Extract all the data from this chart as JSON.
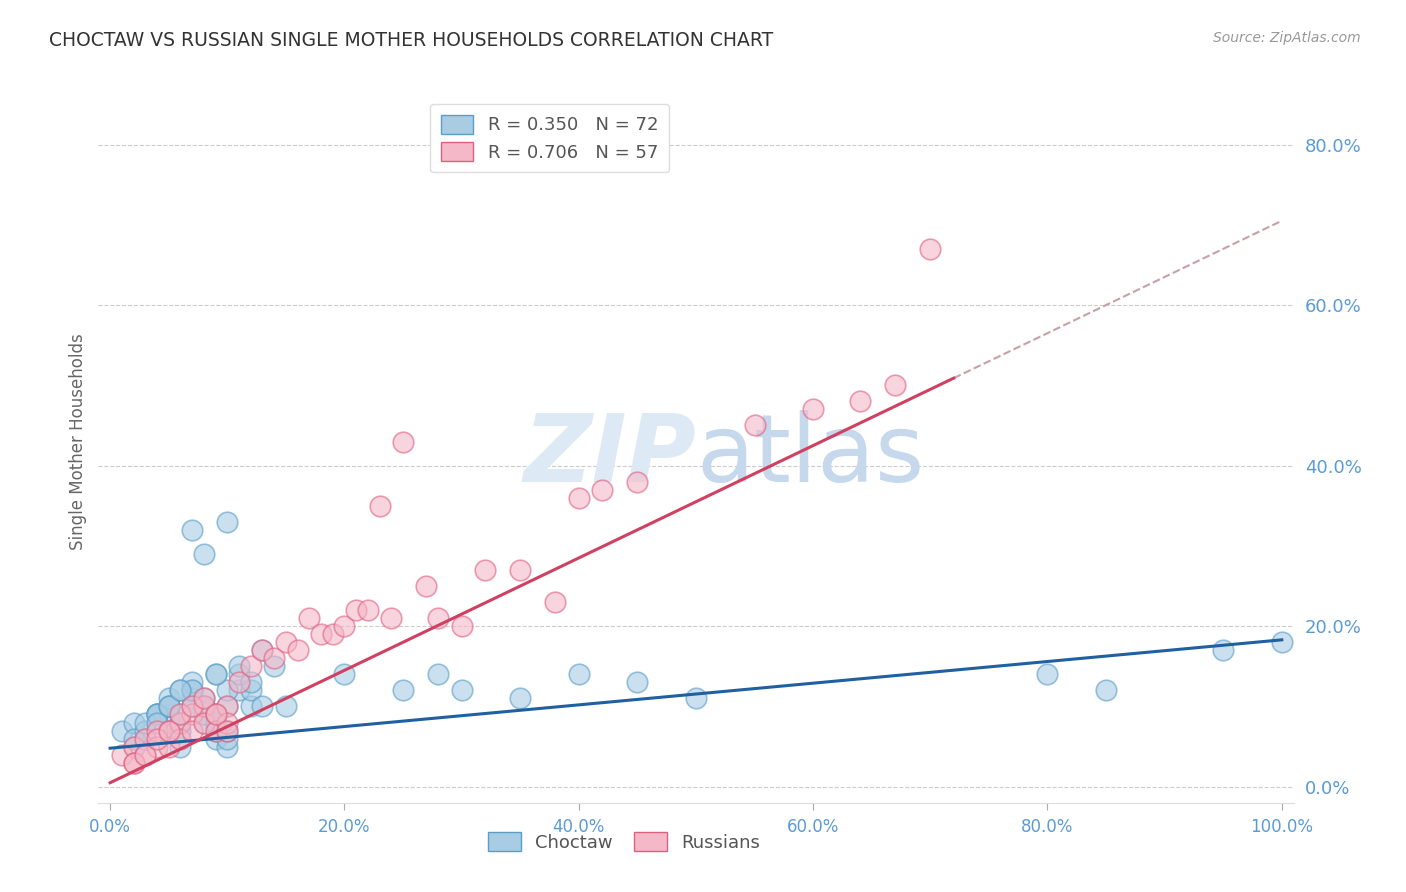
{
  "title": "CHOCTAW VS RUSSIAN SINGLE MOTHER HOUSEHOLDS CORRELATION CHART",
  "source": "Source: ZipAtlas.com",
  "ylabel": "Single Mother Households",
  "xlim": [
    -0.01,
    1.01
  ],
  "ylim": [
    -0.02,
    0.88
  ],
  "yticks": [
    0.0,
    0.2,
    0.4,
    0.6,
    0.8
  ],
  "xticks": [
    0.0,
    0.2,
    0.4,
    0.6,
    0.8,
    1.0
  ],
  "choctaw_color": "#a8cce4",
  "choctaw_edge_color": "#5a9dc8",
  "russian_color": "#f4b8c8",
  "russian_edge_color": "#e06080",
  "choctaw_R": 0.35,
  "choctaw_N": 72,
  "russian_R": 0.706,
  "russian_N": 57,
  "background_color": "#ffffff",
  "grid_color": "#cccccc",
  "axis_tick_color": "#5b9bd5",
  "choctaw_line_color": "#2060a0",
  "russian_line_color": "#d04060",
  "choctaw_line_intercept": 0.048,
  "choctaw_line_slope": 0.135,
  "russian_line_intercept": 0.005,
  "russian_line_slope": 0.7,
  "russian_line_end": 0.72,
  "dashed_line_color": "#c8a0a8",
  "watermark_color": "#ddeaf5",
  "legend_top_x": [
    0.01,
    0.02,
    0.03,
    0.04,
    0.05,
    0.06,
    0.07,
    0.08,
    0.09,
    0.1,
    0.02,
    0.03,
    0.04,
    0.05,
    0.06,
    0.07,
    0.08,
    0.09,
    0.1,
    0.02,
    0.03,
    0.04,
    0.05,
    0.06,
    0.07,
    0.08,
    0.09,
    0.1,
    0.11,
    0.12,
    0.03,
    0.04,
    0.05,
    0.06,
    0.07,
    0.08,
    0.09,
    0.1,
    0.11,
    0.12,
    0.13,
    0.04,
    0.05,
    0.06,
    0.07,
    0.08,
    0.09,
    0.1,
    0.11,
    0.12,
    0.13,
    0.14,
    0.15,
    0.04,
    0.05,
    0.06,
    0.07,
    0.08,
    0.09,
    0.1,
    0.2,
    0.25,
    0.28,
    0.3,
    0.35,
    0.4,
    0.45,
    0.5,
    0.8,
    0.85,
    0.95,
    1.0
  ],
  "choctaw_y_data": [
    0.07,
    0.08,
    0.06,
    0.09,
    0.07,
    0.05,
    0.1,
    0.08,
    0.06,
    0.1,
    0.05,
    0.06,
    0.08,
    0.09,
    0.07,
    0.11,
    0.09,
    0.07,
    0.05,
    0.06,
    0.07,
    0.09,
    0.1,
    0.08,
    0.12,
    0.1,
    0.08,
    0.06,
    0.12,
    0.1,
    0.08,
    0.09,
    0.11,
    0.09,
    0.13,
    0.11,
    0.09,
    0.07,
    0.14,
    0.12,
    0.1,
    0.09,
    0.1,
    0.12,
    0.12,
    0.1,
    0.14,
    0.12,
    0.15,
    0.13,
    0.17,
    0.15,
    0.1,
    0.08,
    0.1,
    0.12,
    0.32,
    0.29,
    0.14,
    0.33,
    0.14,
    0.12,
    0.14,
    0.12,
    0.11,
    0.14,
    0.13,
    0.11,
    0.14,
    0.12,
    0.17,
    0.18
  ],
  "russian_x_data": [
    0.01,
    0.02,
    0.02,
    0.03,
    0.03,
    0.04,
    0.04,
    0.05,
    0.05,
    0.06,
    0.06,
    0.07,
    0.07,
    0.08,
    0.08,
    0.09,
    0.09,
    0.1,
    0.1,
    0.02,
    0.03,
    0.04,
    0.05,
    0.06,
    0.07,
    0.08,
    0.09,
    0.1,
    0.11,
    0.12,
    0.13,
    0.14,
    0.15,
    0.16,
    0.17,
    0.18,
    0.19,
    0.2,
    0.21,
    0.22,
    0.23,
    0.24,
    0.25,
    0.27,
    0.28,
    0.3,
    0.32,
    0.35,
    0.38,
    0.4,
    0.42,
    0.45,
    0.55,
    0.6,
    0.64,
    0.67,
    0.7
  ],
  "russian_y_data": [
    0.04,
    0.05,
    0.03,
    0.06,
    0.04,
    0.07,
    0.05,
    0.07,
    0.05,
    0.08,
    0.06,
    0.09,
    0.07,
    0.1,
    0.08,
    0.09,
    0.07,
    0.1,
    0.08,
    0.03,
    0.04,
    0.06,
    0.07,
    0.09,
    0.1,
    0.11,
    0.09,
    0.07,
    0.13,
    0.15,
    0.17,
    0.16,
    0.18,
    0.17,
    0.21,
    0.19,
    0.19,
    0.2,
    0.22,
    0.22,
    0.35,
    0.21,
    0.43,
    0.25,
    0.21,
    0.2,
    0.27,
    0.27,
    0.23,
    0.36,
    0.37,
    0.38,
    0.45,
    0.47,
    0.48,
    0.5,
    0.67
  ]
}
